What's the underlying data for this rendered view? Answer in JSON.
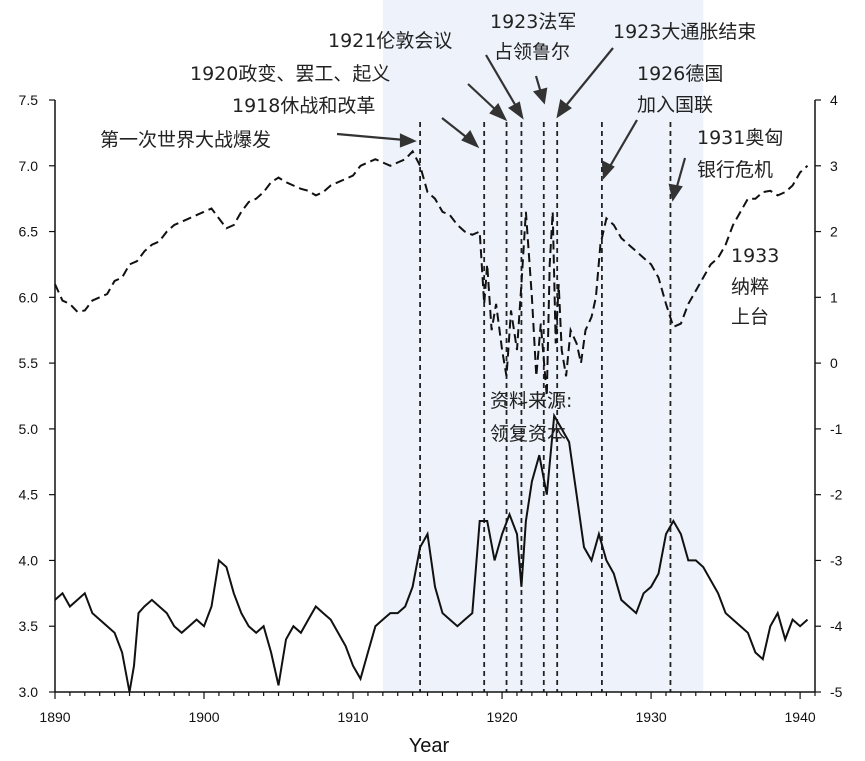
{
  "chart_data": {
    "type": "line",
    "title": "",
    "xlabel": "Year",
    "ylabel": "",
    "xlim": [
      1890,
      1941
    ],
    "ylim_left": [
      3.0,
      7.5
    ],
    "ylim_right": [
      -5,
      4
    ],
    "x_ticks": [
      "1890",
      "1900",
      "1910",
      "1920",
      "1930",
      "1940"
    ],
    "y_left_ticks": [
      "3.0",
      "3.5",
      "4.0",
      "4.5",
      "5.0",
      "5.5",
      "6.0",
      "6.5",
      "7.0",
      "7.5"
    ],
    "y_right_ticks": [
      "-5",
      "-4",
      "-3",
      "-2",
      "-1",
      "0",
      "1",
      "2",
      "3",
      "4"
    ],
    "shaded_region": [
      1912,
      1933.5
    ],
    "shade_color": "#eef3fb",
    "series": [
      {
        "axis": "right",
        "style": "dashed",
        "points": [
          [
            1890.0,
            1.2
          ],
          [
            1890.5,
            0.95
          ],
          [
            1891.0,
            0.9
          ],
          [
            1891.5,
            0.78
          ],
          [
            1892.0,
            0.8
          ],
          [
            1892.5,
            0.95
          ],
          [
            1893.0,
            1.0
          ],
          [
            1893.5,
            1.05
          ],
          [
            1894.0,
            1.25
          ],
          [
            1894.5,
            1.3
          ],
          [
            1895.0,
            1.5
          ],
          [
            1895.5,
            1.55
          ],
          [
            1896.0,
            1.7
          ],
          [
            1896.5,
            1.8
          ],
          [
            1897.0,
            1.85
          ],
          [
            1897.5,
            2.0
          ],
          [
            1898.0,
            2.1
          ],
          [
            1898.5,
            2.15
          ],
          [
            1899.0,
            2.2
          ],
          [
            1899.5,
            2.25
          ],
          [
            1900.0,
            2.3
          ],
          [
            1900.5,
            2.35
          ],
          [
            1901.0,
            2.2
          ],
          [
            1901.5,
            2.05
          ],
          [
            1902.0,
            2.1
          ],
          [
            1902.5,
            2.3
          ],
          [
            1903.0,
            2.45
          ],
          [
            1903.5,
            2.5
          ],
          [
            1904.0,
            2.6
          ],
          [
            1904.5,
            2.75
          ],
          [
            1905.0,
            2.82
          ],
          [
            1905.5,
            2.75
          ],
          [
            1906.0,
            2.7
          ],
          [
            1906.5,
            2.65
          ],
          [
            1907.0,
            2.62
          ],
          [
            1907.5,
            2.55
          ],
          [
            1908.0,
            2.6
          ],
          [
            1908.5,
            2.7
          ],
          [
            1909.0,
            2.75
          ],
          [
            1909.5,
            2.8
          ],
          [
            1910.0,
            2.85
          ],
          [
            1910.5,
            3.0
          ],
          [
            1911.0,
            3.05
          ],
          [
            1911.5,
            3.1
          ],
          [
            1912.0,
            3.05
          ],
          [
            1912.5,
            3.0
          ],
          [
            1913.0,
            3.05
          ],
          [
            1913.5,
            3.1
          ],
          [
            1914.0,
            3.22
          ],
          [
            1914.5,
            3.0
          ],
          [
            1915.0,
            2.6
          ],
          [
            1915.5,
            2.5
          ],
          [
            1916.0,
            2.3
          ],
          [
            1916.5,
            2.25
          ],
          [
            1917.0,
            2.1
          ],
          [
            1917.5,
            2.0
          ],
          [
            1918.0,
            1.95
          ],
          [
            1918.5,
            2.0
          ],
          [
            1918.8,
            0.9
          ],
          [
            1919.0,
            1.5
          ],
          [
            1919.3,
            0.5
          ],
          [
            1919.6,
            0.9
          ],
          [
            1920.0,
            0.2
          ],
          [
            1920.3,
            -0.2
          ],
          [
            1920.6,
            0.8
          ],
          [
            1921.0,
            0.2
          ],
          [
            1921.3,
            1.2
          ],
          [
            1921.6,
            2.3
          ],
          [
            1922.0,
            1.0
          ],
          [
            1922.3,
            -0.2
          ],
          [
            1922.6,
            0.6
          ],
          [
            1923.0,
            -0.5
          ],
          [
            1923.2,
            1.5
          ],
          [
            1923.4,
            2.3
          ],
          [
            1923.6,
            0.3
          ],
          [
            1923.8,
            1.2
          ],
          [
            1924.0,
            0.2
          ],
          [
            1924.3,
            -0.2
          ],
          [
            1924.6,
            0.5
          ],
          [
            1925.0,
            0.3
          ],
          [
            1925.3,
            0.0
          ],
          [
            1925.6,
            0.5
          ],
          [
            1926.0,
            0.7
          ],
          [
            1926.3,
            1.0
          ],
          [
            1926.6,
            1.8
          ],
          [
            1927.0,
            2.2
          ],
          [
            1927.5,
            2.1
          ],
          [
            1928.0,
            1.9
          ],
          [
            1928.5,
            1.8
          ],
          [
            1929.0,
            1.7
          ],
          [
            1929.5,
            1.6
          ],
          [
            1930.0,
            1.5
          ],
          [
            1930.5,
            1.3
          ],
          [
            1931.0,
            0.9
          ],
          [
            1931.5,
            0.55
          ],
          [
            1932.0,
            0.6
          ],
          [
            1932.5,
            0.9
          ],
          [
            1933.0,
            1.1
          ],
          [
            1933.5,
            1.3
          ],
          [
            1934.0,
            1.5
          ],
          [
            1934.5,
            1.6
          ],
          [
            1935.0,
            1.8
          ],
          [
            1935.5,
            2.1
          ],
          [
            1936.0,
            2.3
          ],
          [
            1936.5,
            2.5
          ],
          [
            1937.0,
            2.5
          ],
          [
            1937.5,
            2.6
          ],
          [
            1938.0,
            2.62
          ],
          [
            1938.5,
            2.55
          ],
          [
            1939.0,
            2.6
          ],
          [
            1939.5,
            2.7
          ],
          [
            1940.0,
            2.9
          ],
          [
            1940.5,
            3.0
          ]
        ]
      },
      {
        "axis": "left",
        "style": "solid",
        "points": [
          [
            1890.0,
            3.7
          ],
          [
            1890.5,
            3.75
          ],
          [
            1891.0,
            3.65
          ],
          [
            1891.5,
            3.7
          ],
          [
            1892.0,
            3.75
          ],
          [
            1892.5,
            3.6
          ],
          [
            1893.0,
            3.55
          ],
          [
            1893.5,
            3.5
          ],
          [
            1894.0,
            3.45
          ],
          [
            1894.5,
            3.3
          ],
          [
            1895.0,
            3.0
          ],
          [
            1895.3,
            3.2
          ],
          [
            1895.6,
            3.6
          ],
          [
            1896.0,
            3.65
          ],
          [
            1896.5,
            3.7
          ],
          [
            1897.0,
            3.65
          ],
          [
            1897.5,
            3.6
          ],
          [
            1898.0,
            3.5
          ],
          [
            1898.5,
            3.45
          ],
          [
            1899.0,
            3.5
          ],
          [
            1899.5,
            3.55
          ],
          [
            1900.0,
            3.5
          ],
          [
            1900.5,
            3.65
          ],
          [
            1901.0,
            4.0
          ],
          [
            1901.5,
            3.95
          ],
          [
            1902.0,
            3.75
          ],
          [
            1902.5,
            3.6
          ],
          [
            1903.0,
            3.5
          ],
          [
            1903.5,
            3.45
          ],
          [
            1904.0,
            3.5
          ],
          [
            1904.5,
            3.3
          ],
          [
            1905.0,
            3.05
          ],
          [
            1905.5,
            3.4
          ],
          [
            1906.0,
            3.5
          ],
          [
            1906.5,
            3.45
          ],
          [
            1907.0,
            3.55
          ],
          [
            1907.5,
            3.65
          ],
          [
            1908.0,
            3.6
          ],
          [
            1908.5,
            3.55
          ],
          [
            1909.0,
            3.45
          ],
          [
            1909.5,
            3.35
          ],
          [
            1910.0,
            3.2
          ],
          [
            1910.5,
            3.1
          ],
          [
            1911.0,
            3.3
          ],
          [
            1911.5,
            3.5
          ],
          [
            1912.0,
            3.55
          ],
          [
            1912.5,
            3.6
          ],
          [
            1913.0,
            3.6
          ],
          [
            1913.5,
            3.65
          ],
          [
            1914.0,
            3.8
          ],
          [
            1914.5,
            4.1
          ],
          [
            1915.0,
            4.2
          ],
          [
            1915.5,
            3.8
          ],
          [
            1916.0,
            3.6
          ],
          [
            1916.5,
            3.55
          ],
          [
            1917.0,
            3.5
          ],
          [
            1917.5,
            3.55
          ],
          [
            1918.0,
            3.6
          ],
          [
            1918.5,
            4.3
          ],
          [
            1919.0,
            4.3
          ],
          [
            1919.5,
            4.0
          ],
          [
            1920.0,
            4.2
          ],
          [
            1920.5,
            4.35
          ],
          [
            1921.0,
            4.2
          ],
          [
            1921.3,
            3.8
          ],
          [
            1921.6,
            4.3
          ],
          [
            1922.0,
            4.6
          ],
          [
            1922.5,
            4.8
          ],
          [
            1923.0,
            4.5
          ],
          [
            1923.5,
            5.1
          ],
          [
            1924.0,
            5.0
          ],
          [
            1924.5,
            4.9
          ],
          [
            1925.0,
            4.5
          ],
          [
            1925.5,
            4.1
          ],
          [
            1926.0,
            4.0
          ],
          [
            1926.5,
            4.2
          ],
          [
            1927.0,
            4.0
          ],
          [
            1927.5,
            3.9
          ],
          [
            1928.0,
            3.7
          ],
          [
            1928.5,
            3.65
          ],
          [
            1929.0,
            3.6
          ],
          [
            1929.5,
            3.75
          ],
          [
            1930.0,
            3.8
          ],
          [
            1930.5,
            3.9
          ],
          [
            1931.0,
            4.2
          ],
          [
            1931.5,
            4.3
          ],
          [
            1932.0,
            4.2
          ],
          [
            1932.5,
            4.0
          ],
          [
            1933.0,
            4.0
          ],
          [
            1933.5,
            3.95
          ],
          [
            1934.0,
            3.85
          ],
          [
            1934.5,
            3.75
          ],
          [
            1935.0,
            3.6
          ],
          [
            1935.5,
            3.55
          ],
          [
            1936.0,
            3.5
          ],
          [
            1936.5,
            3.45
          ],
          [
            1937.0,
            3.3
          ],
          [
            1937.5,
            3.25
          ],
          [
            1938.0,
            3.5
          ],
          [
            1938.5,
            3.6
          ],
          [
            1939.0,
            3.4
          ],
          [
            1939.5,
            3.55
          ],
          [
            1940.0,
            3.5
          ],
          [
            1940.5,
            3.55
          ]
        ]
      }
    ],
    "event_lines": [
      1914.5,
      1918.8,
      1920.3,
      1921.3,
      1922.8,
      1923.7,
      1926.7,
      1931.3
    ],
    "annotations": [
      "第一次世界大战爆发",
      "1918休战和改革",
      "1920政变、罢工、起义",
      "1921伦敦会议",
      "1923法军",
      "占领鲁尔",
      "1923大通胀结束",
      "1926德国",
      "加入国联",
      "1931奥匈",
      "银行危机",
      "1933",
      "纳粹",
      "上台"
    ],
    "source_text": [
      "资料来源:",
      "领复资本"
    ]
  }
}
